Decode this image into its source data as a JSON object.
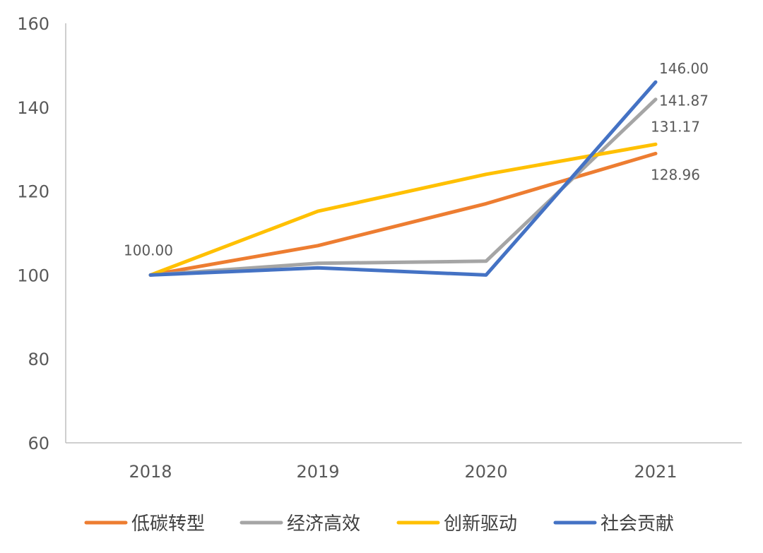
{
  "chart_data": {
    "type": "line",
    "title": "",
    "xlabel": "",
    "ylabel": "",
    "categories": [
      "2018",
      "2019",
      "2020",
      "2021"
    ],
    "ylim": [
      60,
      160
    ],
    "yticks": [
      "60",
      "80",
      "100",
      "120",
      "140",
      "160"
    ],
    "grid": false,
    "legend_position": "bottom",
    "series": [
      {
        "name": "低碳转型",
        "color": "#ED7D31",
        "values": [
          100,
          107,
          117,
          128.96
        ]
      },
      {
        "name": "经济高效",
        "color": "#A5A5A5",
        "values": [
          100,
          102.8,
          103.3,
          141.87
        ]
      },
      {
        "name": "创新驱动",
        "color": "#FFC000",
        "values": [
          100,
          115.2,
          124,
          131.17
        ]
      },
      {
        "name": "社会贡献",
        "color": "#4472C4",
        "values": [
          100,
          101.7,
          100,
          146.0
        ]
      }
    ],
    "data_labels": [
      {
        "text": "100.00",
        "series": 3,
        "index": 0
      },
      {
        "text": "146.00",
        "series": 3,
        "index": 3
      },
      {
        "text": "141.87",
        "series": 1,
        "index": 3
      },
      {
        "text": "131.17",
        "series": 2,
        "index": 3
      },
      {
        "text": "128.96",
        "series": 0,
        "index": 3
      }
    ]
  }
}
